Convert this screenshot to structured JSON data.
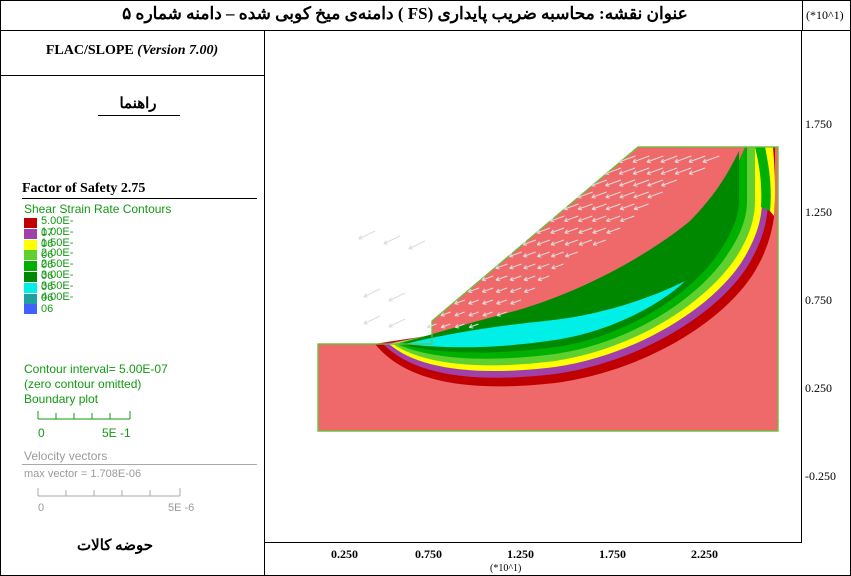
{
  "title": {
    "text": "عنوان نقشه: محاسبه ضریب پایداری (FS ) دامنه‌ی میخ کوبی شده  – دامنه شماره ۵",
    "axis_scale": "(*10^1)"
  },
  "sidebar": {
    "program_name": "FLAC/SLOPE",
    "program_version": "(Version 7.00)",
    "legend_title": "راهنما",
    "factor_of_safety": "Factor of Safety  2.75",
    "contour_title": "Shear Strain Rate Contours",
    "contours": [
      {
        "label": "5.00E-07",
        "color": "#c00000"
      },
      {
        "label": "1.00E-06",
        "color": "#a040a8"
      },
      {
        "label": "1.50E-06",
        "color": "#ffff00"
      },
      {
        "label": "2.00E-06",
        "color": "#60d030"
      },
      {
        "label": "2.50E-06",
        "color": "#00b000"
      },
      {
        "label": "3.00E-06",
        "color": "#008800"
      },
      {
        "label": "3.50E-06",
        "color": "#00f0e8"
      },
      {
        "label": "4.00E-06",
        "color": "#20a0a0"
      },
      {
        "label": "",
        "color": "#4060ff"
      }
    ],
    "contour_interval": "Contour interval=  5.00E-07",
    "zero_contour": "(zero contour omitted)",
    "boundary_plot": "Boundary plot",
    "boundary_scale_start": "0",
    "boundary_scale_end": "5E -1",
    "velocity_title": "Velocity vectors",
    "max_vector": "max vector =    1.708E-06",
    "velocity_scale_start": "0",
    "velocity_scale_end": "5E -6",
    "basin": "حوضه کالات"
  },
  "axes": {
    "y_ticks": [
      "1.750",
      "1.250",
      "0.750",
      "0.250",
      "-0.250"
    ],
    "x_ticks": [
      "0.250",
      "0.750",
      "1.250",
      "1.750",
      "2.250"
    ],
    "x_unit": "(*10^1)"
  },
  "colors": {
    "soil": "#f0696a",
    "boundary": "#6bbf3a",
    "vector": "#d8d8d8"
  }
}
